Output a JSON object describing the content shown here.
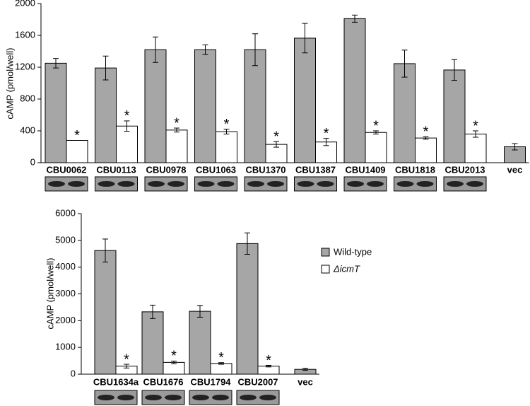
{
  "chart_data": [
    {
      "type": "bar",
      "y_label": "cAMP (pmol/well)",
      "categories": [
        "CBU0062",
        "CBU0113",
        "CBU0978",
        "CBU1063",
        "CBU1370",
        "CBU1387",
        "CBU1409",
        "CBU1818",
        "CBU2013",
        "vec"
      ],
      "series": [
        {
          "color": "#a6a6a6",
          "values": [
            1250,
            1190,
            1420,
            1420,
            1420,
            1565,
            1810,
            1245,
            1165,
            200
          ],
          "errors": [
            60,
            150,
            160,
            60,
            200,
            185,
            45,
            170,
            130,
            40
          ]
        },
        {
          "color": "#ffffff",
          "values": [
            280,
            460,
            410,
            390,
            230,
            260,
            380,
            310,
            360,
            null
          ],
          "errors": [
            0,
            65,
            25,
            30,
            35,
            45,
            20,
            15,
            40,
            null
          ]
        }
      ],
      "significance": [
        "*",
        "*",
        "*",
        "*",
        "*",
        "*",
        "*",
        "*",
        "*",
        null
      ],
      "ylim": [
        0,
        2000
      ],
      "yticks": [
        0,
        400,
        800,
        1200,
        1600,
        2000
      ]
    },
    {
      "type": "bar",
      "y_label": "cAMP (pmol/well)",
      "categories": [
        "CBU1634a",
        "CBU1676",
        "CBU1794",
        "CBU2007",
        "vec"
      ],
      "series": [
        {
          "name": "Wild-type",
          "color": "#a6a6a6",
          "values": [
            4620,
            2330,
            2350,
            4880,
            180
          ],
          "errors": [
            430,
            250,
            220,
            400,
            40
          ]
        },
        {
          "name": "ΔicmT",
          "color": "#ffffff",
          "values": [
            300,
            440,
            400,
            300,
            null
          ],
          "errors": [
            70,
            50,
            30,
            30,
            null
          ]
        }
      ],
      "significance": [
        "*",
        "*",
        "*",
        "*",
        null
      ],
      "ylim": [
        0,
        6000
      ],
      "yticks": [
        0,
        1000,
        2000,
        3000,
        4000,
        5000,
        6000
      ],
      "legend": true
    }
  ]
}
